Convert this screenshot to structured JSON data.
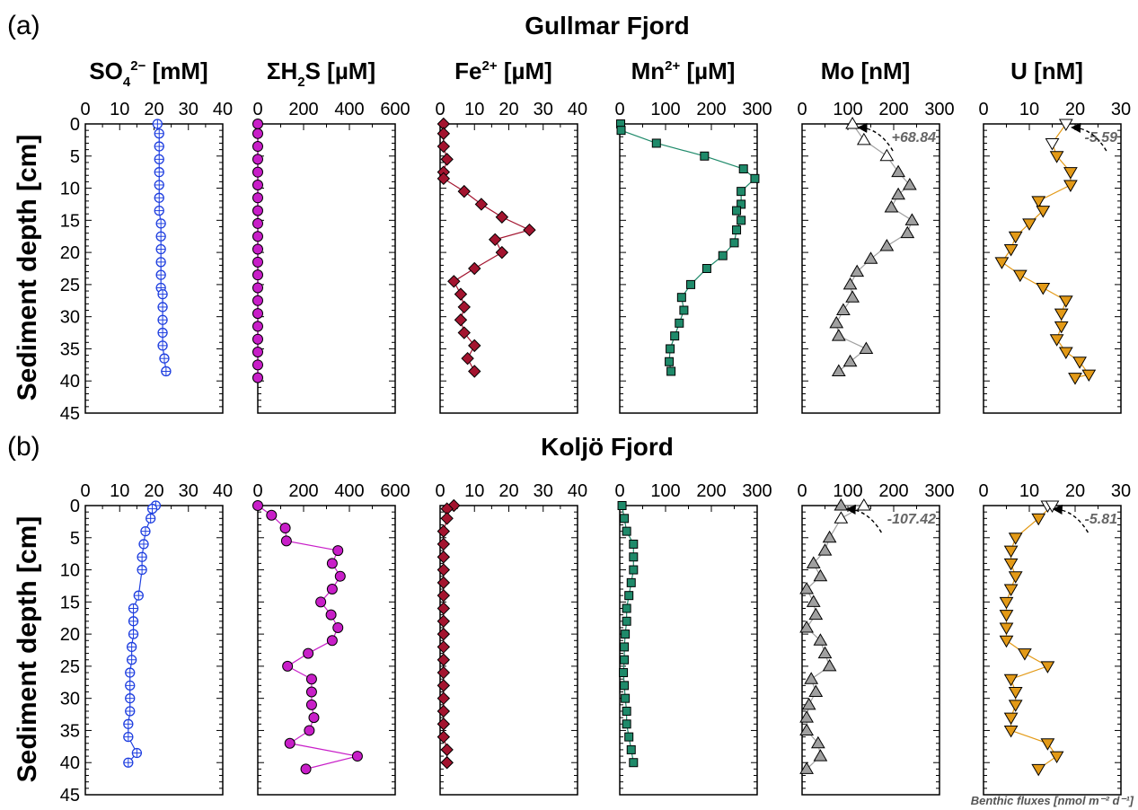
{
  "panels": [
    {
      "letter": "(a)",
      "title": "Gullmar Fjord"
    },
    {
      "letter": "(b)",
      "title": "Koljö Fjord"
    }
  ],
  "y_axis_label": "Sediment depth [cm]",
  "y_ticks": [
    "0",
    "5",
    "10",
    "15",
    "20",
    "25",
    "30",
    "35",
    "40",
    "45"
  ],
  "ylim": [
    0,
    45
  ],
  "flux_note": "Benthic fluxes [nmol m⁻² d⁻¹]",
  "columns": [
    {
      "title_html": "SO<tspan dy='8' font-size='15'>4</tspan><tspan dy='-18' font-size='15'>2−</tspan><tspan dy='10'> [mM]</tspan>",
      "xlim": [
        0,
        40
      ],
      "ticks": [
        "0",
        "10",
        "20",
        "30",
        "40"
      ]
    },
    {
      "title_html": "ΣH<tspan dy='8' font-size='15'>2</tspan><tspan dy='-8'>S [µM]</tspan>",
      "xlim": [
        0,
        600
      ],
      "ticks": [
        "0",
        "200",
        "400",
        "600"
      ]
    },
    {
      "title_html": "Fe<tspan dy='-10' font-size='15'>2+</tspan><tspan dy='10'> [µM]</tspan>",
      "xlim": [
        0,
        40
      ],
      "ticks": [
        "0",
        "10",
        "20",
        "30",
        "40"
      ]
    },
    {
      "title_html": "Mn<tspan dy='-10' font-size='15'>2+</tspan><tspan dy='10'> [µM]</tspan>",
      "xlim": [
        0,
        300
      ],
      "ticks": [
        "0",
        "100",
        "200",
        "300"
      ]
    },
    {
      "title_html": "Mo [nM]",
      "xlim": [
        0,
        300
      ],
      "ticks": [
        "0",
        "100",
        "200",
        "300"
      ]
    },
    {
      "title_html": "U [nM]",
      "xlim": [
        0,
        30
      ],
      "ticks": [
        "0",
        "10",
        "20",
        "30"
      ]
    }
  ],
  "colors": {
    "so4": "#1f3fe0",
    "h2s": "#c81ec8",
    "fe": "#a3142f",
    "mn": "#1f8a6a",
    "mo": "#a0a0a0",
    "u": "#e39a17"
  },
  "chart_data": [
    {
      "type": "scatter",
      "panel": "Gullmar Fjord",
      "series": [
        {
          "name": "SO4",
          "x": [
            21,
            21.5,
            21.5,
            21.5,
            21.5,
            21.5,
            21.5,
            21.5,
            22,
            22,
            22,
            22,
            22,
            22,
            22.5,
            22.5,
            22.5,
            22.5,
            22.5,
            23,
            23.5,
            23.5
          ],
          "y": [
            0,
            1.5,
            3.5,
            5.5,
            7.5,
            9.5,
            11.5,
            13.5,
            15.5,
            17.5,
            19.5,
            21.5,
            23.5,
            25.5,
            26.5,
            28.5,
            30.5,
            32.5,
            34.5,
            36.5,
            38.5,
            38.5
          ]
        },
        {
          "name": "H2S",
          "x": [
            0,
            0,
            0,
            0,
            0,
            0,
            0,
            0,
            0,
            0,
            0,
            0,
            0,
            0,
            0,
            0,
            0,
            0,
            0,
            0,
            0
          ],
          "y": [
            0,
            1.5,
            3.5,
            5.5,
            7.5,
            9.5,
            11.5,
            13.5,
            15.5,
            17.5,
            19.5,
            21.5,
            23.5,
            25.5,
            27.5,
            29.5,
            31.5,
            33.5,
            35.5,
            37.5,
            39.5
          ]
        },
        {
          "name": "Fe2+",
          "x": [
            1,
            1,
            1,
            2,
            1,
            1,
            7,
            12,
            18,
            26,
            16,
            18,
            10,
            4,
            6,
            7,
            6,
            7,
            10,
            8,
            10
          ],
          "y": [
            0,
            1.5,
            3.5,
            5.5,
            7.5,
            8.5,
            10.5,
            12.5,
            14.5,
            16.5,
            18,
            20,
            22.5,
            24.5,
            26.5,
            28.5,
            30.5,
            32.5,
            34.5,
            36.5,
            38.5
          ]
        },
        {
          "name": "Mn2+",
          "x": [
            2,
            3,
            80,
            185,
            270,
            295,
            265,
            265,
            255,
            265,
            255,
            250,
            225,
            190,
            155,
            135,
            140,
            130,
            120,
            110,
            108,
            112
          ],
          "y": [
            0,
            1,
            3,
            5,
            7,
            8.5,
            10.5,
            12.5,
            13.5,
            15,
            16.5,
            18.5,
            20.5,
            22.5,
            25,
            27,
            29,
            31,
            33,
            35,
            37,
            38.5
          ]
        },
        {
          "name": "Mo",
          "x": [
            110,
            135,
            185,
            210,
            235,
            210,
            195,
            240,
            230,
            185,
            150,
            120,
            105,
            110,
            90,
            75,
            80,
            140,
            105,
            80
          ],
          "y": [
            0,
            2.5,
            5,
            7.5,
            9.5,
            11,
            13,
            15,
            17,
            19,
            21,
            23,
            25,
            27,
            29,
            31,
            33,
            35,
            37,
            38.5
          ]
        },
        {
          "name": "U",
          "x": [
            18,
            15,
            16,
            19,
            19,
            12,
            13,
            10,
            7,
            6,
            4,
            8,
            13,
            18,
            17,
            17,
            16,
            18,
            21,
            23,
            20
          ],
          "y": [
            0,
            3,
            5,
            7.5,
            9.5,
            12,
            13.5,
            15.5,
            17.5,
            19.5,
            21.5,
            23.5,
            25.5,
            27.5,
            29.5,
            31.5,
            33.5,
            35.5,
            37,
            39,
            39.5
          ]
        }
      ],
      "annotations": [
        {
          "text": "+68.84",
          "series": "Mo"
        },
        {
          "text": "-5.59",
          "series": "U"
        }
      ]
    },
    {
      "type": "scatter",
      "panel": "Koljö Fjord",
      "series": [
        {
          "name": "SO4",
          "x": [
            20.5,
            19.5,
            19,
            17.5,
            17,
            16.5,
            16.5,
            15.5,
            14,
            14,
            14,
            13.5,
            13.5,
            13,
            13,
            13,
            13,
            12.5,
            12.5,
            15,
            12.5
          ],
          "y": [
            0,
            0.5,
            2,
            4,
            6,
            8,
            10,
            14,
            16,
            18,
            20,
            22,
            24,
            26,
            28,
            30,
            32,
            34,
            36,
            38.5,
            40
          ]
        },
        {
          "name": "H2S",
          "x": [
            0,
            60,
            120,
            125,
            350,
            325,
            360,
            325,
            275,
            320,
            350,
            325,
            220,
            130,
            235,
            235,
            235,
            245,
            225,
            140,
            435,
            210
          ],
          "y": [
            0,
            1.5,
            3.5,
            5.5,
            7,
            9,
            11,
            13,
            15,
            17,
            19,
            21,
            23,
            25,
            27,
            29,
            31,
            33,
            35,
            37,
            39,
            41
          ]
        },
        {
          "name": "Fe2+",
          "x": [
            4,
            2,
            2,
            1,
            1,
            1,
            1,
            1,
            1,
            1,
            1,
            1,
            1,
            1,
            1,
            1,
            1,
            1,
            1,
            1,
            2,
            2,
            2
          ],
          "y": [
            0,
            0.5,
            2,
            4,
            6,
            8,
            10,
            12,
            14,
            16,
            18,
            20,
            22,
            24,
            26,
            28,
            30,
            32,
            34,
            36,
            38,
            40,
            40
          ]
        },
        {
          "name": "Mn2+",
          "x": [
            5,
            10,
            15,
            30,
            30,
            30,
            25,
            20,
            15,
            15,
            12,
            10,
            10,
            8,
            10,
            12,
            15,
            15,
            20,
            25,
            30
          ],
          "y": [
            0,
            2,
            4,
            6,
            8,
            10,
            12,
            14,
            16,
            18,
            20,
            22,
            24,
            26,
            28,
            30,
            32,
            34,
            36,
            38,
            40
          ]
        },
        {
          "name": "Mo",
          "x": [
            85,
            135,
            85,
            60,
            50,
            25,
            40,
            10,
            25,
            30,
            10,
            40,
            50,
            60,
            20,
            30,
            15,
            10,
            10,
            35,
            40,
            10
          ],
          "y": [
            0,
            0,
            2,
            5,
            7,
            9,
            11,
            13,
            15,
            17,
            19,
            21,
            23,
            25,
            27,
            29,
            31,
            33,
            35,
            37,
            39,
            41
          ]
        },
        {
          "name": "U",
          "x": [
            14,
            15,
            12,
            7,
            6,
            6,
            7,
            6,
            5,
            5,
            5,
            5,
            9,
            14,
            6,
            7,
            7,
            6,
            6,
            14,
            16,
            12
          ],
          "y": [
            0,
            0,
            2,
            5,
            7,
            9,
            11,
            13,
            15,
            17,
            19,
            21,
            23,
            25,
            27,
            29,
            31,
            33,
            35,
            37,
            39,
            41
          ]
        }
      ],
      "annotations": [
        {
          "text": "-107.42",
          "series": "Mo"
        },
        {
          "text": "-5.81",
          "series": "U"
        }
      ]
    }
  ]
}
